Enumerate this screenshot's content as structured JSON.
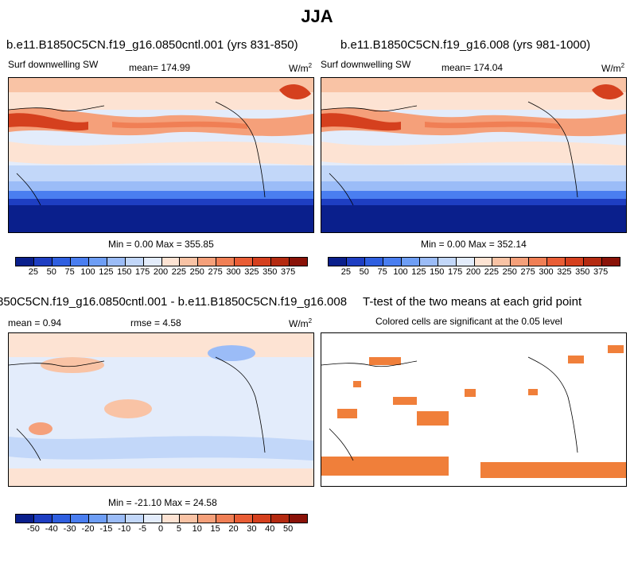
{
  "title": "JJA",
  "panels": {
    "top_left": {
      "title": "b.e11.B1850C5CN.f19_g16.0850cntl.001 (yrs 831-850)",
      "variable": "Surf downwelling SW",
      "mean": "mean= 174.99",
      "units": "W/m",
      "units_sup": "2",
      "minmax": "Min =   0.00 Max = 355.85"
    },
    "top_right": {
      "title": "b.e11.B1850C5CN.f19_g16.008 (yrs 981-1000)",
      "variable": "Surf downwelling SW",
      "mean": "mean= 174.04",
      "units": "W/m",
      "units_sup": "2",
      "minmax": "Min =   0.00 Max = 352.14"
    },
    "bottom_left": {
      "title": "850C5CN.f19_g16.0850cntl.001 - b.e11.B1850C5CN.f19_g16.008",
      "mean": "mean =   0.94",
      "rmse": "rmse =   4.58",
      "units": "W/m",
      "units_sup": "2",
      "minmax": "Min = -21.10 Max = 24.58"
    },
    "bottom_right": {
      "title": "T-test of the two means at each grid point",
      "subtitle": "Colored cells are significant at the 0.05 level"
    }
  },
  "colorbar_abs": {
    "colors": [
      "#0a1f8c",
      "#1e3ec2",
      "#2f5fe0",
      "#4a7ef0",
      "#6e9ef5",
      "#9bbcf7",
      "#c2d7f9",
      "#e3ecfb",
      "#fde3d3",
      "#f9c3a5",
      "#f5a07a",
      "#f07f55",
      "#e95d35",
      "#d5401e",
      "#b42a10",
      "#8a1208"
    ],
    "ticks": [
      "25",
      "50",
      "75",
      "100",
      "125",
      "150",
      "175",
      "200",
      "225",
      "250",
      "275",
      "300",
      "325",
      "350",
      "375"
    ]
  },
  "colorbar_diff": {
    "colors": [
      "#0a1f8c",
      "#1e3ec2",
      "#2f5fe0",
      "#4a7ef0",
      "#6e9ef5",
      "#9bbcf7",
      "#c2d7f9",
      "#e3ecfb",
      "#fde3d3",
      "#f9c3a5",
      "#f5a07a",
      "#f07f55",
      "#e95d35",
      "#d5401e",
      "#b42a10",
      "#8a1208"
    ],
    "ticks": [
      "-50",
      "-40",
      "-30",
      "-20",
      "-15",
      "-10",
      "-5",
      "0",
      "5",
      "10",
      "15",
      "20",
      "30",
      "40",
      "50"
    ]
  },
  "map_colors": {
    "deep_blue": "#0a1f8c",
    "mid_blue": "#4a7ef0",
    "light_blue": "#c2d7f9",
    "pale": "#e3ecfb",
    "peach": "#fde3d3",
    "orange": "#f07f55",
    "red": "#d5401e",
    "dark_red": "#b42a10",
    "sig_orange": "#f07f3a"
  }
}
